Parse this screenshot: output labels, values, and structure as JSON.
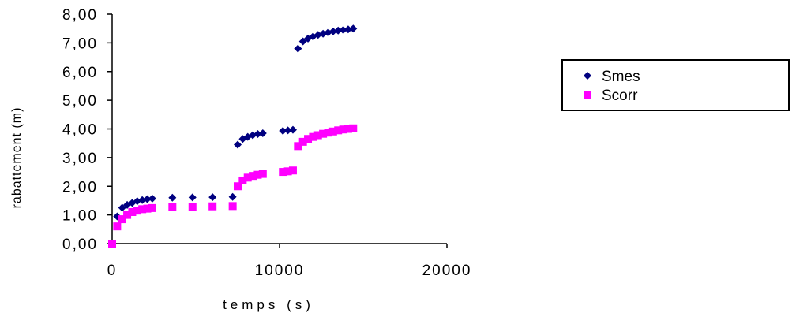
{
  "chart_data": {
    "type": "scatter",
    "title": "",
    "xlabel": "temps (s)",
    "ylabel": "rabattement (m)",
    "xlim": [
      0,
      20000
    ],
    "ylim": [
      0,
      8
    ],
    "x_ticks": [
      "0",
      "10000",
      "20000"
    ],
    "y_ticks": [
      "0,00",
      "1,00",
      "2,00",
      "3,00",
      "4,00",
      "5,00",
      "6,00",
      "7,00",
      "8,00"
    ],
    "grid": false,
    "legend_position": "right",
    "series": [
      {
        "name": "Smes",
        "marker": "diamond",
        "color": "#000080",
        "x": [
          0,
          300,
          600,
          900,
          1200,
          1500,
          1800,
          2100,
          2400,
          3600,
          4800,
          6000,
          7200,
          7500,
          7800,
          8100,
          8400,
          8700,
          9000,
          10200,
          10500,
          10800,
          11100,
          11400,
          11700,
          12000,
          12300,
          12600,
          12900,
          13200,
          13500,
          13800,
          14100,
          14400
        ],
        "y": [
          0.0,
          0.95,
          1.25,
          1.35,
          1.42,
          1.48,
          1.52,
          1.55,
          1.57,
          1.6,
          1.61,
          1.62,
          1.63,
          3.45,
          3.65,
          3.72,
          3.78,
          3.82,
          3.85,
          3.93,
          3.95,
          3.97,
          6.8,
          7.05,
          7.15,
          7.22,
          7.28,
          7.32,
          7.36,
          7.4,
          7.43,
          7.45,
          7.47,
          7.5
        ]
      },
      {
        "name": "Scorr",
        "marker": "square",
        "color": "#FF00FF",
        "x": [
          0,
          300,
          600,
          900,
          1200,
          1500,
          1800,
          2100,
          2400,
          3600,
          4800,
          6000,
          7200,
          7500,
          7800,
          8100,
          8400,
          8700,
          9000,
          10200,
          10500,
          10800,
          11100,
          11400,
          11700,
          12000,
          12300,
          12600,
          12900,
          13200,
          13500,
          13800,
          14100,
          14400
        ],
        "y": [
          0.0,
          0.6,
          0.85,
          1.0,
          1.1,
          1.15,
          1.2,
          1.22,
          1.24,
          1.27,
          1.29,
          1.3,
          1.31,
          2.0,
          2.2,
          2.3,
          2.36,
          2.4,
          2.43,
          2.5,
          2.52,
          2.55,
          3.4,
          3.55,
          3.65,
          3.72,
          3.78,
          3.83,
          3.87,
          3.91,
          3.95,
          3.98,
          4.0,
          4.02
        ]
      }
    ]
  }
}
